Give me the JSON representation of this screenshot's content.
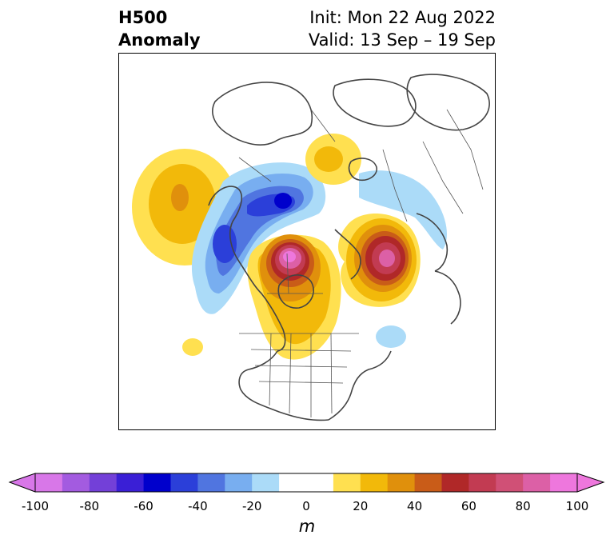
{
  "title": {
    "left_line1": "H500",
    "left_line2": "Anomaly",
    "right_line1": "Init: Mon 22 Aug 2022",
    "right_line2": "Valid: 13 Sep – 19 Sep"
  },
  "map": {
    "projection": "north-polar-stereographic",
    "field": "500 hPa geopotential height anomaly"
  },
  "colorbar": {
    "units": "m",
    "extend": "both",
    "ticks": [
      "-100",
      "-80",
      "-60",
      "-40",
      "-20",
      "0",
      "20",
      "40",
      "60",
      "80",
      "100"
    ],
    "levels": [
      -100,
      -90,
      -80,
      -70,
      -60,
      -50,
      -40,
      -30,
      -20,
      -10,
      10,
      20,
      30,
      40,
      50,
      60,
      70,
      80,
      90,
      100
    ],
    "under_color": "#d877e8",
    "over_color": "#ee77dd",
    "colors": [
      "#d877e8",
      "#a35be0",
      "#7340d8",
      "#3a1fd6",
      "#0000cc",
      "#2b3fd9",
      "#5075e0",
      "#78aef0",
      "#abdbf8",
      "#ffffff",
      "#ffe050",
      "#f2b90a",
      "#e0900c",
      "#c95c18",
      "#b02828",
      "#c23b52",
      "#d05076",
      "#dc60a6",
      "#ee77dd"
    ]
  }
}
